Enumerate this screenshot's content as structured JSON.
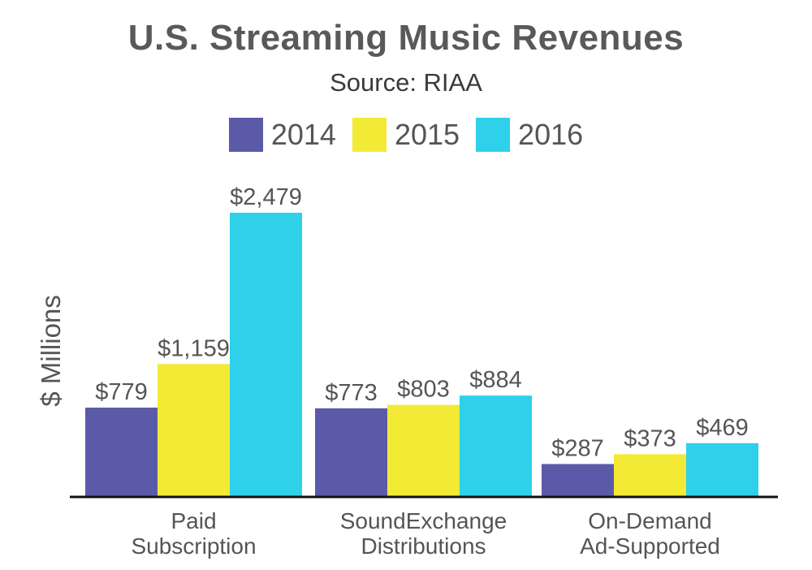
{
  "chart_data": {
    "type": "bar",
    "title": "U.S. Streaming Music Revenues",
    "subtitle": "Source: RIAA",
    "ylabel": "$ Millions",
    "xlabel": "",
    "ylim": [
      0,
      2479
    ],
    "grid": false,
    "legend_placement": "top-center",
    "categories": [
      [
        "Paid",
        "Subscription"
      ],
      [
        "SoundExchange",
        "Distributions"
      ],
      [
        "On-Demand",
        "Ad-Supported"
      ]
    ],
    "series": [
      {
        "name": "2014",
        "color": "#5b5aa8",
        "values": [
          779,
          773,
          287
        ],
        "labels": [
          "$779",
          "$773",
          "$287"
        ]
      },
      {
        "name": "2015",
        "color": "#f2ea35",
        "values": [
          1159,
          803,
          373
        ],
        "labels": [
          "$1,159",
          "$803",
          "$373"
        ]
      },
      {
        "name": "2016",
        "color": "#2fd0ea",
        "values": [
          2479,
          884,
          469
        ],
        "labels": [
          "$2,479",
          "$884",
          "$469"
        ]
      }
    ]
  }
}
